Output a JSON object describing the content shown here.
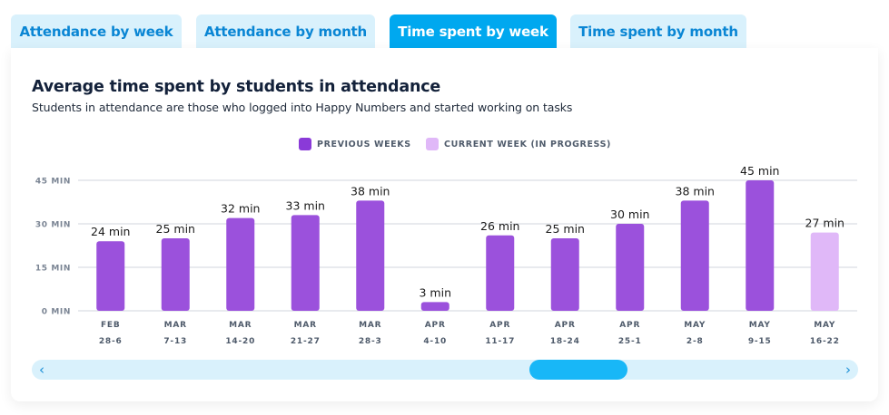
{
  "tabs": [
    {
      "label": "Attendance by week",
      "active": false
    },
    {
      "label": "Attendance by month",
      "active": false
    },
    {
      "label": "Time spent by week",
      "active": true
    },
    {
      "label": "Time spent by month",
      "active": false
    }
  ],
  "colors": {
    "tab_active_bg": "#00a8ef",
    "tab_inactive_bg": "#d9f1fc",
    "previous_weeks": "#9b51dc",
    "current_week": "#e0b8f8",
    "gridline": "#d9dde3",
    "scroll_thumb": "#18b7f7",
    "scroll_track": "#d9f1fc"
  },
  "scrollbar": {
    "left_arrow": "‹",
    "right_arrow": "›"
  },
  "chart_data": {
    "type": "bar",
    "title": "Average time spent by students in attendance",
    "subtitle": "Students in attendance are those who logged into Happy Numbers and started working on tasks",
    "xlabel": "",
    "ylabel": "",
    "ylim": [
      0,
      45
    ],
    "grid": true,
    "yticks": [
      {
        "value": 0,
        "label": "0 MIN"
      },
      {
        "value": 15,
        "label": "15 MIN"
      },
      {
        "value": 30,
        "label": "30 MIN"
      },
      {
        "value": 45,
        "label": "45 MIN"
      }
    ],
    "legend_position": "top-center",
    "legend": [
      {
        "label": "PREVIOUS WEEKS",
        "series": "previous"
      },
      {
        "label": "CURRENT WEEK (IN PROGRESS)",
        "series": "current"
      }
    ],
    "categories": [
      {
        "month": "FEB",
        "range": "28-6"
      },
      {
        "month": "MAR",
        "range": "7-13"
      },
      {
        "month": "MAR",
        "range": "14-20"
      },
      {
        "month": "MAR",
        "range": "21-27"
      },
      {
        "month": "MAR",
        "range": "28-3"
      },
      {
        "month": "APR",
        "range": "4-10"
      },
      {
        "month": "APR",
        "range": "11-17"
      },
      {
        "month": "APR",
        "range": "18-24"
      },
      {
        "month": "APR",
        "range": "25-1"
      },
      {
        "month": "MAY",
        "range": "2-8"
      },
      {
        "month": "MAY",
        "range": "9-15"
      },
      {
        "month": "MAY",
        "range": "16-22"
      }
    ],
    "values": [
      24,
      25,
      32,
      33,
      38,
      3,
      26,
      25,
      30,
      38,
      45,
      27
    ],
    "value_labels": [
      "24 min",
      "25 min",
      "32 min",
      "33 min",
      "38 min",
      "3 min",
      "26 min",
      "25 min",
      "30 min",
      "38 min",
      "45 min",
      "27 min"
    ],
    "series_of_bar": [
      "previous",
      "previous",
      "previous",
      "previous",
      "previous",
      "previous",
      "previous",
      "previous",
      "previous",
      "previous",
      "previous",
      "current"
    ]
  }
}
